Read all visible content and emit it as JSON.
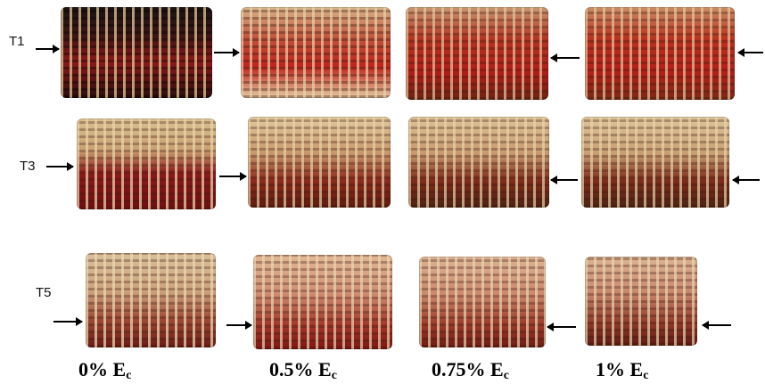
{
  "rows": [
    {
      "label": "T1"
    },
    {
      "label": "T3"
    },
    {
      "label": "T5"
    }
  ],
  "columns": [
    {
      "pct": "0%",
      "symbol": "E",
      "sub": "c"
    },
    {
      "pct": "0.5%",
      "symbol": "E",
      "sub": "c"
    },
    {
      "pct": "0.75%",
      "symbol": "E",
      "sub": "c"
    },
    {
      "pct": "1%",
      "symbol": "E",
      "sub": "c"
    }
  ]
}
